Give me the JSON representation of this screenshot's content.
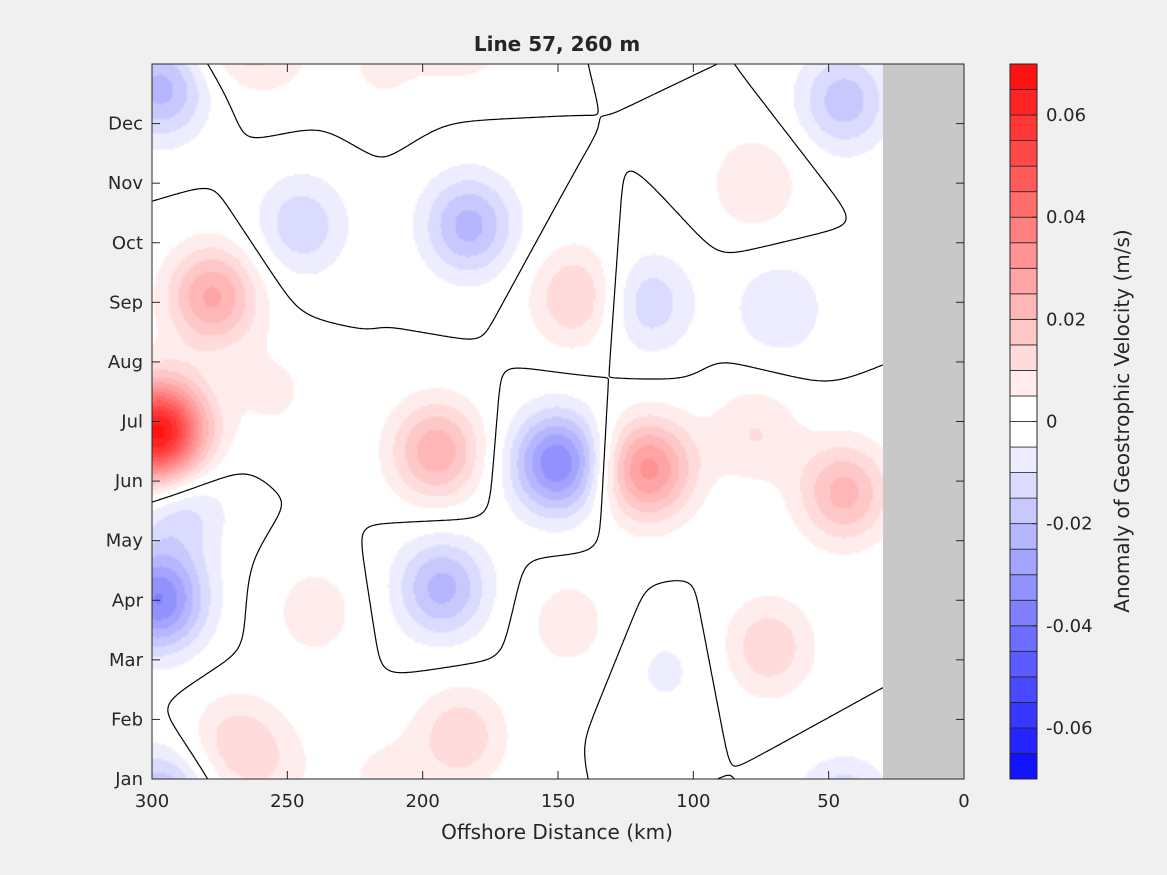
{
  "chart_data": {
    "type": "contour",
    "title": "Line 57, 260 m",
    "xlabel": "Offshore Distance (km)",
    "ylabel": "",
    "colorbar_label": "Anomaly of Geostrophic Velocity (m/s)",
    "xlim": [
      300,
      0
    ],
    "x_reversed": true,
    "x_ticks": [
      300,
      250,
      200,
      150,
      100,
      50,
      0
    ],
    "y_ticks": [
      "Jan",
      "Feb",
      "Mar",
      "Apr",
      "May",
      "Jun",
      "Jul",
      "Aug",
      "Sep",
      "Oct",
      "Nov",
      "Dec"
    ],
    "data_x_extent_km": [
      300,
      30
    ],
    "no_data_region_km": [
      30,
      0
    ],
    "colorbar": {
      "clim": [
        -0.07,
        0.07
      ],
      "ticks": [
        0.06,
        0.04,
        0.02,
        0,
        -0.02,
        -0.04,
        -0.06
      ],
      "tick_labels": [
        "0.06",
        "0.04",
        "0.02",
        "0",
        "-0.02",
        "-0.04",
        "-0.06"
      ],
      "level_step": 0.005,
      "zero_band": [
        -0.005,
        0.005
      ],
      "positive_color": "#ff0000",
      "negative_color": "#0000ff",
      "zero_color": "#ffffff"
    },
    "features": [
      {
        "x_km": 298,
        "month": 5.8,
        "value": 0.068
      },
      {
        "x_km": 278,
        "month": 8.1,
        "value": 0.026
      },
      {
        "x_km": 245,
        "month": 9.3,
        "value": -0.014
      },
      {
        "x_km": 297,
        "month": 11.6,
        "value": -0.022
      },
      {
        "x_km": 298,
        "month": 3.0,
        "value": -0.035
      },
      {
        "x_km": 290,
        "month": 4.6,
        "value": -0.014
      },
      {
        "x_km": 270,
        "month": 0.6,
        "value": 0.012
      },
      {
        "x_km": 240,
        "month": 2.8,
        "value": 0.008
      },
      {
        "x_km": 195,
        "month": 5.5,
        "value": 0.024
      },
      {
        "x_km": 183,
        "month": 9.3,
        "value": -0.022
      },
      {
        "x_km": 193,
        "month": 3.2,
        "value": -0.022
      },
      {
        "x_km": 186,
        "month": 0.7,
        "value": 0.014
      },
      {
        "x_km": 150,
        "month": 5.3,
        "value": -0.035
      },
      {
        "x_km": 143,
        "month": 8.1,
        "value": 0.016
      },
      {
        "x_km": 117,
        "month": 5.2,
        "value": 0.032
      },
      {
        "x_km": 117,
        "month": 8.0,
        "value": -0.014
      },
      {
        "x_km": 146,
        "month": 2.6,
        "value": 0.008
      },
      {
        "x_km": 77,
        "month": 10.0,
        "value": 0.01
      },
      {
        "x_km": 77,
        "month": 5.8,
        "value": 0.01
      },
      {
        "x_km": 72,
        "month": 2.2,
        "value": 0.014
      },
      {
        "x_km": 68,
        "month": 7.9,
        "value": -0.01
      },
      {
        "x_km": 44,
        "month": 4.8,
        "value": 0.022
      },
      {
        "x_km": 44,
        "month": 11.4,
        "value": -0.018
      },
      {
        "x_km": 110,
        "month": 1.8,
        "value": -0.006
      },
      {
        "x_km": 255,
        "month": 12.2,
        "value": 0.006
      },
      {
        "x_km": 215,
        "month": 12.0,
        "value": 0.006
      },
      {
        "x_km": 255,
        "month": 6.5,
        "value": 0.006
      }
    ]
  }
}
